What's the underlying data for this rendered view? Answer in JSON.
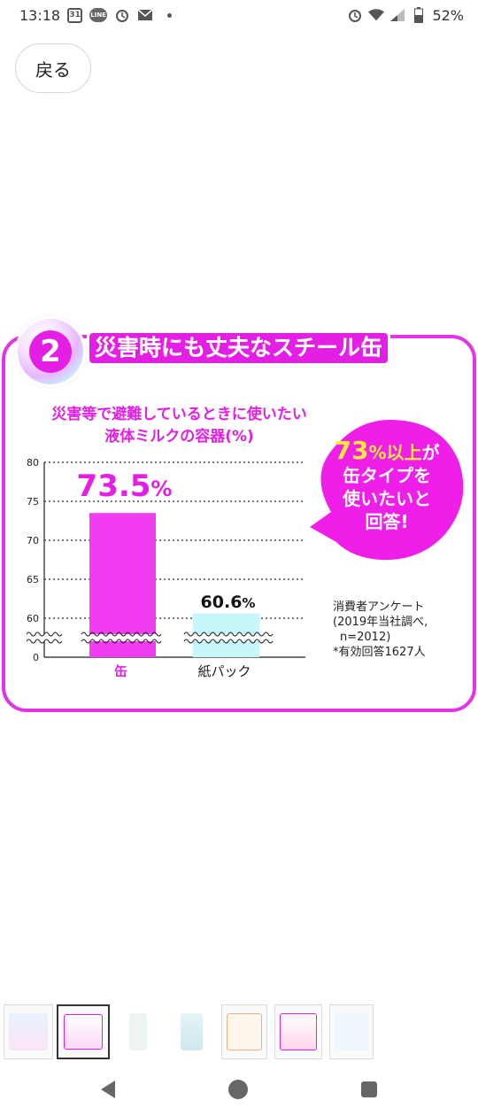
{
  "status_bar": {
    "time": "13:18",
    "calendar_day": "31",
    "line_badge": "LINE",
    "battery": "52%"
  },
  "back_button": {
    "label": "戻る"
  },
  "card": {
    "number": "2",
    "title": "災害時にも丈夫なスチール缶",
    "accent_color": "#e51ee5"
  },
  "chart_data": {
    "type": "bar",
    "title_lines": [
      "災害等で避難しているときに使いたい",
      "液体ミルクの容器(%)"
    ],
    "categories": [
      "缶",
      "紙パック"
    ],
    "values": [
      73.5,
      60.6
    ],
    "value_labels": [
      {
        "num": "73.5",
        "unit": "%"
      },
      {
        "num": "60.6",
        "unit": "%"
      }
    ],
    "y_ticks": [
      80,
      75,
      70,
      65,
      60,
      0
    ],
    "ylim": [
      0,
      80
    ],
    "axis_break": true,
    "bar_colors": [
      "#f23cf2",
      "#c7f7fb"
    ],
    "grid": true
  },
  "bubble": {
    "highlight_num": "73",
    "highlight_rest": "%以上",
    "line1_tail": "が",
    "line2": "缶タイプを",
    "line3": "使いたいと",
    "line4": "回答!"
  },
  "note": {
    "line1": "消費者アンケート",
    "line2": "(2019年当社調べ,",
    "line3": "n=2012)",
    "line4": "*有効回答1627人"
  }
}
